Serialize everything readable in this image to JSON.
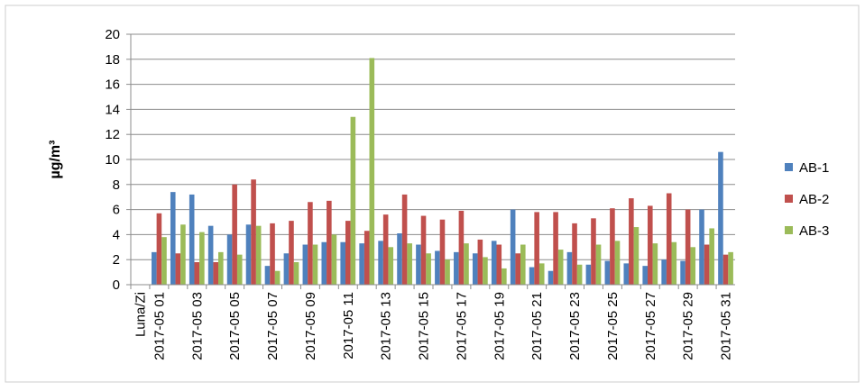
{
  "chart_data": {
    "type": "bar",
    "y_label": "µg/m³",
    "categories": [
      "Luna/Zi",
      "2017-05 01",
      null,
      "2017-05 03",
      null,
      "2017-05 05",
      null,
      "2017-05 07",
      null,
      "2017-05 09",
      null,
      "2017-05 11",
      null,
      "2017-05 13",
      null,
      "2017-05 15",
      null,
      "2017-05 17",
      null,
      "2017-05 19",
      null,
      "2017-05 21",
      null,
      "2017-05 23",
      null,
      "2017-05 25",
      null,
      "2017-05 27",
      null,
      "2017-05 29",
      null,
      "2017-05 31"
    ],
    "series": [
      {
        "name": "AB-1",
        "color": "#4f81bd",
        "values": [
          0,
          2.6,
          7.4,
          7.2,
          4.7,
          4.0,
          4.8,
          1.5,
          2.5,
          3.2,
          3.4,
          3.4,
          3.3,
          3.5,
          4.1,
          3.2,
          2.7,
          2.6,
          2.5,
          3.5,
          6.0,
          1.4,
          1.1,
          2.6,
          1.6,
          1.9,
          1.7,
          1.5,
          2.0,
          1.9,
          6.0,
          10.6
        ]
      },
      {
        "name": "AB-2",
        "color": "#c0504d",
        "values": [
          0,
          5.7,
          2.5,
          1.8,
          1.8,
          8.0,
          8.4,
          4.9,
          5.1,
          6.6,
          6.7,
          5.1,
          4.3,
          5.6,
          7.2,
          5.5,
          5.2,
          5.9,
          3.6,
          3.2,
          2.5,
          5.8,
          5.8,
          4.9,
          5.3,
          6.1,
          6.9,
          6.3,
          7.3,
          6.0,
          3.2,
          2.4
        ]
      },
      {
        "name": "AB-3",
        "color": "#9bbb59",
        "values": [
          0,
          3.8,
          4.8,
          4.2,
          2.6,
          2.4,
          4.7,
          1.1,
          1.8,
          3.2,
          4.0,
          13.4,
          18.1,
          3.0,
          3.3,
          2.5,
          2.0,
          3.3,
          2.2,
          1.3,
          3.2,
          1.7,
          2.8,
          1.6,
          3.2,
          3.5,
          4.6,
          3.3,
          3.4,
          3.0,
          4.5,
          2.6
        ]
      }
    ],
    "ylim": [
      0,
      20
    ],
    "yticks": [
      0,
      2,
      4,
      6,
      8,
      10,
      12,
      14,
      16,
      18,
      20
    ],
    "grid": true,
    "legend": "right"
  }
}
